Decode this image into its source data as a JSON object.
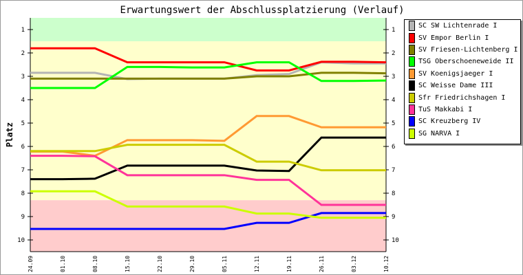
{
  "chart_data": {
    "type": "line",
    "title": "Erwartungswert der Abschlussplatzierung (Verlauf)",
    "ylabel": "Platz",
    "xlabel": "",
    "ylim": [
      0.5,
      10.5
    ],
    "y_inverted": true,
    "yticks": [
      1,
      2,
      3,
      4,
      5,
      6,
      7,
      8,
      9,
      10
    ],
    "x": [
      "24.09",
      "01.10",
      "08.10",
      "15.10",
      "22.10",
      "29.10",
      "05.11",
      "12.11",
      "19.11",
      "26.11",
      "03.12",
      "10.12"
    ],
    "bands": [
      {
        "from": 0.5,
        "to": 1.5,
        "color": "#ccffcc"
      },
      {
        "from": 1.5,
        "to": 8.3,
        "color": "#ffffcc"
      },
      {
        "from": 8.3,
        "to": 10.5,
        "color": "#ffcccc"
      }
    ],
    "legend_position": "right",
    "series": [
      {
        "name": "SC SW Lichtenrade I",
        "color": "#b4b4b4",
        "values": [
          2.85,
          2.85,
          2.85,
          3.12,
          3.1,
          3.1,
          3.1,
          2.95,
          2.9,
          2.4,
          2.45,
          2.45
        ]
      },
      {
        "name": "SV Empor Berlin I",
        "color": "#ff0000",
        "values": [
          1.8,
          1.8,
          1.8,
          2.4,
          2.4,
          2.4,
          2.4,
          2.75,
          2.75,
          2.38,
          2.38,
          2.4
        ]
      },
      {
        "name": "SV Friesen-Lichtenberg I",
        "color": "#808000",
        "values": [
          3.1,
          3.1,
          3.1,
          3.1,
          3.1,
          3.1,
          3.1,
          3.0,
          3.0,
          2.85,
          2.85,
          2.87
        ]
      },
      {
        "name": "TSG Oberschoeneweide II",
        "color": "#00ff00",
        "values": [
          3.5,
          3.5,
          3.5,
          2.6,
          2.6,
          2.62,
          2.62,
          2.4,
          2.4,
          3.2,
          3.2,
          3.18
        ]
      },
      {
        "name": "SV Koenigsjaeger I",
        "color": "#ff9933",
        "values": [
          6.22,
          6.22,
          6.4,
          5.73,
          5.73,
          5.73,
          5.76,
          4.7,
          4.7,
          5.18,
          5.18,
          5.18
        ]
      },
      {
        "name": "SC Weisse Dame III",
        "color": "#000000",
        "values": [
          7.4,
          7.4,
          7.38,
          6.82,
          6.82,
          6.82,
          6.82,
          7.03,
          7.05,
          5.62,
          5.62,
          5.62
        ]
      },
      {
        "name": "Sfr Friedrichshagen I",
        "color": "#cccc00",
        "values": [
          6.2,
          6.2,
          6.2,
          5.93,
          5.93,
          5.93,
          5.93,
          6.65,
          6.65,
          7.02,
          7.02,
          7.02
        ]
      },
      {
        "name": "TuS Makkabi I",
        "color": "#ff3399",
        "values": [
          6.4,
          6.4,
          6.42,
          7.23,
          7.23,
          7.23,
          7.23,
          7.43,
          7.43,
          8.5,
          8.5,
          8.5
        ]
      },
      {
        "name": "SC Kreuzberg IV",
        "color": "#0000ff",
        "values": [
          9.53,
          9.53,
          9.53,
          9.53,
          9.53,
          9.53,
          9.53,
          9.27,
          9.27,
          8.85,
          8.85,
          8.85
        ]
      },
      {
        "name": "SG NARVA I",
        "color": "#ccff00",
        "values": [
          7.92,
          7.92,
          7.92,
          8.57,
          8.57,
          8.57,
          8.57,
          8.87,
          8.87,
          9.05,
          9.05,
          9.05
        ]
      }
    ]
  }
}
